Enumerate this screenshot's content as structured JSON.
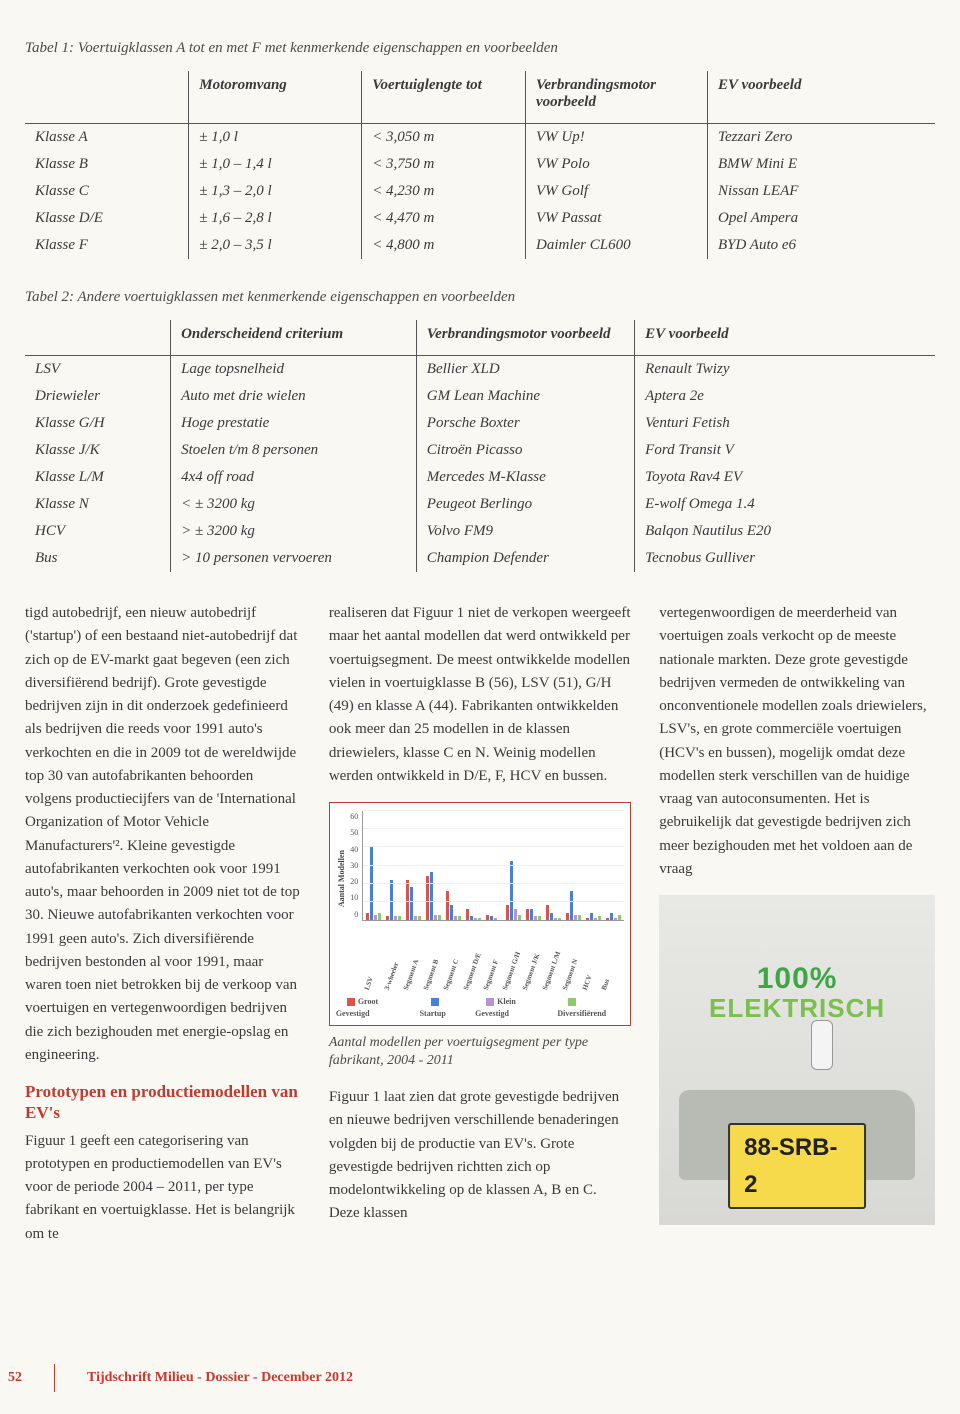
{
  "table1": {
    "caption": "Tabel 1: Voertuigklassen A tot en met F met kenmerkende eigenschappen en voorbeelden",
    "headers": [
      "",
      "Motoromvang",
      "Voertuiglengte tot",
      "Verbrandingsmotor voorbeeld",
      "EV voorbeeld"
    ],
    "rows": [
      [
        "Klasse A",
        "± 1,0 l",
        "< 3,050 m",
        "VW Up!",
        "Tezzari Zero"
      ],
      [
        "Klasse B",
        "± 1,0 – 1,4 l",
        "< 3,750 m",
        "VW Polo",
        "BMW Mini E"
      ],
      [
        "Klasse C",
        "± 1,3 – 2,0 l",
        "< 4,230 m",
        "VW Golf",
        "Nissan LEAF"
      ],
      [
        "Klasse D/E",
        "± 1,6 – 2,8 l",
        "< 4,470 m",
        "VW Passat",
        "Opel Ampera"
      ],
      [
        "Klasse F",
        "± 2,0 – 3,5 l",
        "< 4,800 m",
        "Daimler CL600",
        "BYD Auto e6"
      ]
    ]
  },
  "table2": {
    "caption": "Tabel 2: Andere voertuigklassen met kenmerkende eigenschappen en voorbeelden",
    "headers": [
      "",
      "Onderscheidend criterium",
      "Verbrandingsmotor voorbeeld",
      "EV voorbeeld"
    ],
    "rows": [
      [
        "LSV",
        "Lage topsnelheid",
        "Bellier XLD",
        "Renault Twizy"
      ],
      [
        "Driewieler",
        "Auto met drie wielen",
        "GM Lean Machine",
        "Aptera 2e"
      ],
      [
        "Klasse G/H",
        "Hoge prestatie",
        "Porsche Boxter",
        "Venturi Fetish"
      ],
      [
        "Klasse J/K",
        "Stoelen t/m 8 personen",
        "Citroën Picasso",
        "Ford Transit V"
      ],
      [
        "Klasse L/M",
        "4x4 off road",
        "Mercedes M-Klasse",
        "Toyota Rav4 EV"
      ],
      [
        "Klasse N",
        "< ± 3200 kg",
        "Peugeot Berlingo",
        "E-wolf Omega 1.4"
      ],
      [
        "HCV",
        "> ± 3200 kg",
        "Volvo FM9",
        "Balqon Nautilus E20"
      ],
      [
        "Bus",
        "> 10 personen vervoeren",
        "Champion Defender",
        "Tecnobus Gulliver"
      ]
    ]
  },
  "body": {
    "col1_p1": "tigd autobedrijf, een nieuw autobedrijf ('startup') of een bestaand niet-autobedrijf dat zich op de EV-markt gaat begeven (een zich diversifiërend bedrijf). Grote gevestigde bedrijven zijn in dit onderzoek gedefinieerd als bedrijven die reeds voor 1991 auto's verkochten en die in 2009 tot de wereldwijde top 30 van autofabrikanten behoorden volgens productiecijfers van de 'International Organization of Motor Vehicle Manufacturers'². Kleine gevestigde autofabrikanten verkochten ook voor 1991 auto's, maar behoorden in 2009 niet tot de top 30. Nieuwe autofabrikanten verkochten voor 1991 geen auto's. Zich diversifiërende bedrijven bestonden al voor 1991, maar waren toen niet betrokken bij de verkoop van voertuigen en vertegenwoordigen bedrijven die zich bezighouden met energie-opslag en engineering.",
    "col1_head": "Prototypen en productiemodellen van EV's",
    "col1_p2": "Figuur 1 geeft een categorisering van prototypen en productiemodellen van EV's voor de periode 2004 – 2011, per type fabrikant en voertuigklasse. Het is belangrijk om te",
    "col2_p1": "realiseren dat Figuur 1 niet de verkopen weergeeft maar het aantal modellen dat werd ontwikkeld per voertuigsegment. De meest ontwikkelde modellen vielen in voertuigklasse B (56), LSV (51), G/H (49) en klasse A (44). Fabrikanten ontwikkelden ook meer dan 25 modellen in de klassen driewielers, klasse C en N. Weinig modellen werden ontwikkeld in D/E, F, HCV en bussen.",
    "chart_caption": "Aantal modellen per voertuigsegment per type fabrikant, 2004 - 2011",
    "col2_p2": "Figuur 1 laat zien dat grote gevestigde bedrijven en nieuwe bedrijven verschillende benaderingen volgden bij de productie van EV's. Grote gevestigde bedrijven richtten zich op modelontwikkeling op de klassen A, B en C. Deze klassen",
    "col3_p1": "vertegenwoordigen de meerderheid van voertuigen zoals verkocht op de meeste nationale markten. Deze grote gevestigde bedrijven vermeden de ontwikkeling van onconventionele modellen zoals driewielers, LSV's, en grote commerciële voertuigen (HCV's en bussen), mogelijk omdat deze modellen sterk verschillen van de huidige vraag van autoconsumenten. Het is gebruikelijk dat gevestigde bedrijven zich meer bezighouden met het voldoen aan de vraag"
  },
  "chart": {
    "y_label": "Aantal Modellen",
    "y_max": 60,
    "y_ticks": [
      0,
      10,
      20,
      30,
      40,
      50,
      60
    ],
    "categories": [
      "LSV",
      "3-wheeler",
      "Segment A",
      "Segment B",
      "Segment C",
      "Segment D/E",
      "Segment F",
      "Segment G/H",
      "Segment J/K",
      "Segment L/M",
      "Segment N",
      "HCV",
      "Bus"
    ],
    "series_colors": {
      "groot": "#d9534f",
      "startup": "#4a7fd4",
      "klein": "#b794d4",
      "divers": "#8fc96f"
    },
    "legend": [
      "Groot Gevestigd",
      "Startup",
      "Klein Gevestigd",
      "Diversifiërend"
    ],
    "data": [
      {
        "groot": 4,
        "startup": 40,
        "klein": 3,
        "divers": 4
      },
      {
        "groot": 2,
        "startup": 22,
        "klein": 2,
        "divers": 2
      },
      {
        "groot": 22,
        "startup": 18,
        "klein": 2,
        "divers": 2
      },
      {
        "groot": 24,
        "startup": 26,
        "klein": 3,
        "divers": 3
      },
      {
        "groot": 16,
        "startup": 8,
        "klein": 2,
        "divers": 2
      },
      {
        "groot": 6,
        "startup": 2,
        "klein": 1,
        "divers": 1
      },
      {
        "groot": 3,
        "startup": 2,
        "klein": 1,
        "divers": 0
      },
      {
        "groot": 8,
        "startup": 32,
        "klein": 6,
        "divers": 3
      },
      {
        "groot": 6,
        "startup": 6,
        "klein": 2,
        "divers": 2
      },
      {
        "groot": 8,
        "startup": 4,
        "klein": 1,
        "divers": 1
      },
      {
        "groot": 4,
        "startup": 16,
        "klein": 3,
        "divers": 3
      },
      {
        "groot": 1,
        "startup": 4,
        "klein": 1,
        "divers": 2
      },
      {
        "groot": 1,
        "startup": 4,
        "klein": 1,
        "divers": 3
      }
    ]
  },
  "photo": {
    "line1": "100%",
    "line2": "ELEKTRISCH",
    "plate": "88-SRB-2"
  },
  "footer": {
    "page": "52",
    "text": "Tijdschrift Milieu - Dossier - December 2012"
  }
}
